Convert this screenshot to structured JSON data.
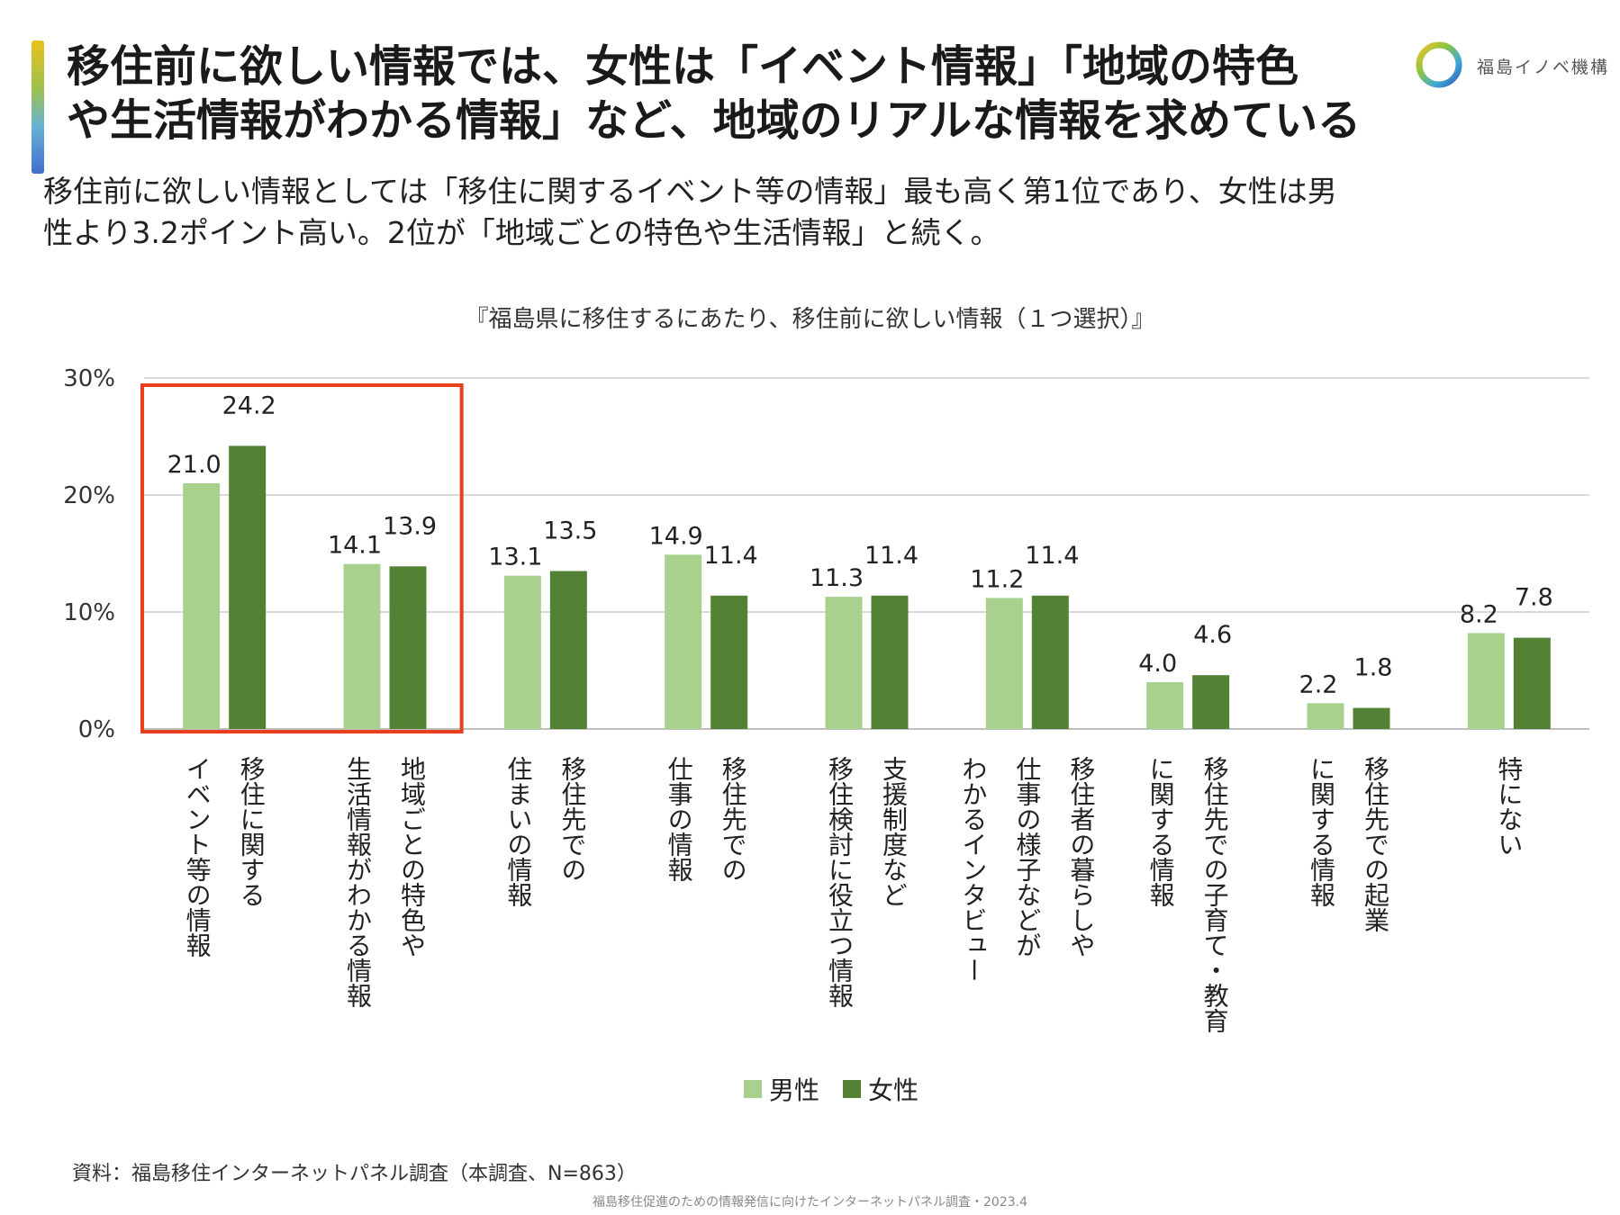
{
  "headline": {
    "line1": "移住前に欲しい情報では、女性は「イベント情報」「地域の特色",
    "line2": "や生活情報がわかる情報」など、地域のリアルな情報を求めている"
  },
  "logo": {
    "text": "福島イノベ機構"
  },
  "lead": {
    "line1": "移住前に欲しい情報としては「移住に関するイベント等の情報」最も高く第1位であり、女性は男",
    "line2": "性より3.2ポイント高い。2位が「地域ごとの特色や生活情報」と続く。"
  },
  "source": "資料：福島移住インターネットパネル調査（本調査、N=863）",
  "footer": "福島移住促進のための情報発信に向けたインターネットパネル調査・2023.4",
  "colors": {
    "male": "#a9d18e",
    "female": "#548235",
    "highlight": "#e8401c",
    "grid": "#d9d9d9"
  },
  "chart_data": {
    "type": "bar",
    "title": "『福島県に移住するにあたり、移住前に欲しい情報（１つ選択）』",
    "ylim": [
      0,
      30
    ],
    "yticks": [
      "0%",
      "10%",
      "20%",
      "30%"
    ],
    "categories": [
      [
        "移住に関する",
        "イベント等の情報"
      ],
      [
        "地域ごとの特色や",
        "生活情報がわかる情報"
      ],
      [
        "移住先での",
        "住まいの情報"
      ],
      [
        "移住先での",
        "仕事の情報"
      ],
      [
        "支援制度など",
        "移住検討に役立つ情報"
      ],
      [
        "移住者の暮らしや",
        "仕事の様子などが",
        "わかるインタビュー"
      ],
      [
        "移住先での子育て・教育",
        "に関する情報"
      ],
      [
        "移住先での起業",
        "に関する情報"
      ],
      [
        "特にない"
      ]
    ],
    "series": [
      {
        "name": "男性",
        "values": [
          21.0,
          14.1,
          13.1,
          14.9,
          11.3,
          11.2,
          4.0,
          2.2,
          8.2
        ],
        "labels": [
          "21.0",
          "14.1",
          "13.1",
          "14.9",
          "11.3",
          "11.2",
          "4.0",
          "2.2",
          "8.2"
        ]
      },
      {
        "name": "女性",
        "values": [
          24.2,
          13.9,
          13.5,
          11.4,
          11.4,
          11.4,
          4.6,
          1.8,
          7.8
        ],
        "labels": [
          "24.2",
          "13.9",
          "13.5",
          "11.4",
          "11.4",
          "11.4",
          "4.6",
          "1.8",
          "7.8"
        ]
      }
    ],
    "legend_position": "bottom-center",
    "highlighted_categories": [
      0,
      1
    ]
  }
}
